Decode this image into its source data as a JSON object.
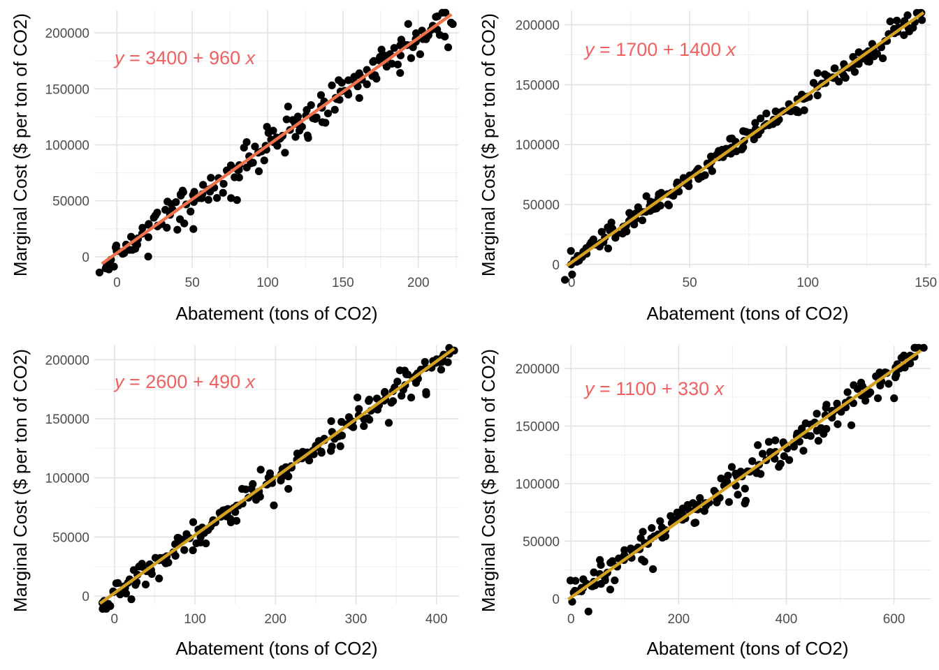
{
  "chart_data": [
    {
      "type": "scatter",
      "xlabel": "Abatement (tons of CO2)",
      "ylabel": "Marginal Cost ($ per ton of CO2)",
      "equation": {
        "var": "y",
        "rest": " = 3400 + 960 ",
        "xvar": "x"
      },
      "xlim": [
        -15,
        227
      ],
      "ylim": [
        -10000,
        220000
      ],
      "xticks": [
        0,
        50,
        100,
        150,
        200
      ],
      "yticks": [
        0,
        50000,
        100000,
        150000,
        200000
      ],
      "fit": {
        "intercept": 3400,
        "slope": 960,
        "x": [
          -10,
          222
        ]
      },
      "line_color": "#f0704a",
      "point_color": "#000000",
      "equation_color": "#f06060",
      "n_points": 200,
      "noise": 7500,
      "seed": 11
    },
    {
      "type": "scatter",
      "xlabel": "Abatement (tons of CO2)",
      "ylabel": "Marginal Cost ($ per ton of CO2)",
      "equation": {
        "var": "y",
        "rest": " = 1700 + 1400 ",
        "xvar": "x"
      },
      "xlim": [
        -3,
        152
      ],
      "ylim": [
        -3000,
        212000
      ],
      "xticks": [
        0,
        50,
        100,
        150
      ],
      "yticks": [
        0,
        50000,
        100000,
        150000,
        200000
      ],
      "fit": {
        "intercept": 1700,
        "slope": 1400,
        "x": [
          -2,
          149
        ]
      },
      "line_color": "#d4a020",
      "point_color": "#000000",
      "equation_color": "#f06060",
      "n_points": 200,
      "noise": 4500,
      "seed": 23
    },
    {
      "type": "scatter",
      "xlabel": "Abatement (tons of CO2)",
      "ylabel": "Marginal Cost ($ per ton of CO2)",
      "equation": {
        "var": "y",
        "rest": " = 2600 + 490 ",
        "xvar": "x"
      },
      "xlim": [
        -25,
        428
      ],
      "ylim": [
        -7000,
        212000
      ],
      "xticks": [
        0,
        100,
        200,
        300,
        400
      ],
      "yticks": [
        0,
        50000,
        100000,
        150000,
        200000
      ],
      "fit": {
        "intercept": 2600,
        "slope": 490,
        "x": [
          -18,
          422
        ]
      },
      "line_color": "#d4a020",
      "point_color": "#000000",
      "equation_color": "#f06060",
      "n_points": 200,
      "noise": 6000,
      "seed": 37
    },
    {
      "type": "scatter",
      "xlabel": "Abatement (tons of CO2)",
      "ylabel": "Marginal Cost ($ per ton of CO2)",
      "equation": {
        "var": "y",
        "rest": " = 1100 + 330 ",
        "xvar": "x"
      },
      "xlim": [
        -12,
        668
      ],
      "ylim": [
        -5000,
        220000
      ],
      "xticks": [
        0,
        200,
        400,
        600
      ],
      "yticks": [
        0,
        50000,
        100000,
        150000,
        200000
      ],
      "fit": {
        "intercept": 1100,
        "slope": 330,
        "x": [
          -5,
          650
        ]
      },
      "line_color": "#d4a020",
      "point_color": "#000000",
      "equation_color": "#f06060",
      "n_points": 200,
      "noise": 6500,
      "seed": 53
    }
  ]
}
